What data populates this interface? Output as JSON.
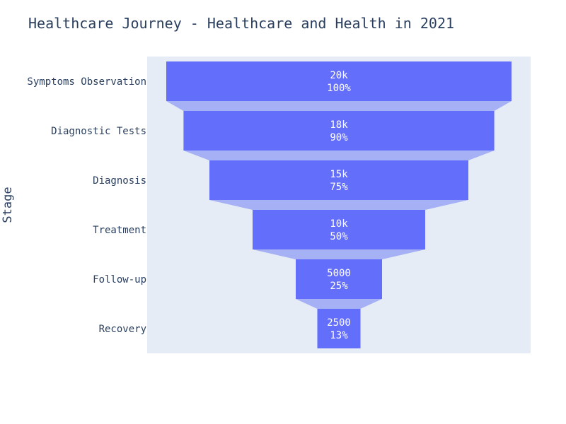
{
  "chart_data": {
    "type": "funnel",
    "title": "Healthcare Journey - Healthcare and Health in 2021",
    "ylabel": "Stage",
    "categories": [
      "Symptoms Observation",
      "Diagnostic Tests",
      "Diagnosis",
      "Treatment",
      "Follow-up",
      "Recovery"
    ],
    "values": [
      20000,
      18000,
      15000,
      10000,
      5000,
      2500
    ],
    "value_labels": [
      "20k",
      "18k",
      "15k",
      "10k",
      "5000",
      "2500"
    ],
    "percent_labels": [
      "100%",
      "90%",
      "75%",
      "50%",
      "25%",
      "13%"
    ],
    "colors": {
      "bar": "#636efa",
      "connector": "#a6b0f4",
      "plot_bg": "#e5ecf6",
      "text": "#2a3f5f",
      "bar_text": "#ffffff"
    }
  }
}
